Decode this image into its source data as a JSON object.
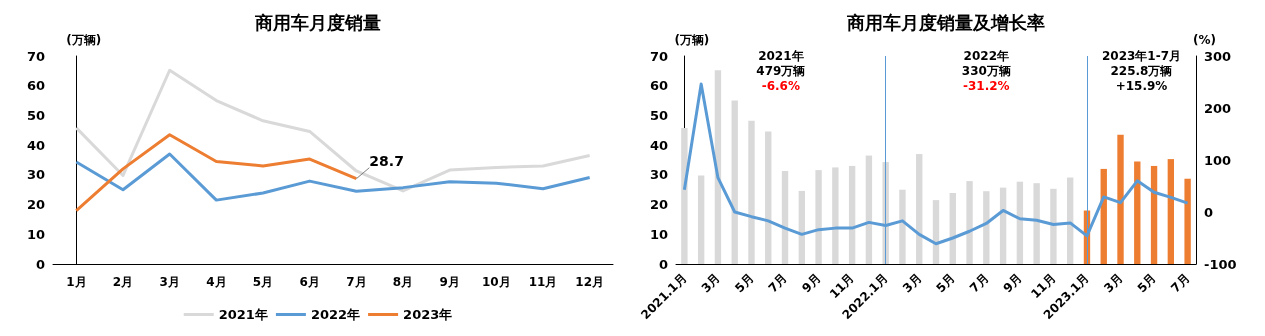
{
  "chart_data": [
    {
      "type": "line",
      "title": "商用车月度销量",
      "ylabel": "(万辆)",
      "categories": [
        "1月",
        "2月",
        "3月",
        "4月",
        "5月",
        "6月",
        "7月",
        "8月",
        "9月",
        "10月",
        "11月",
        "12月"
      ],
      "ylim": [
        0,
        70
      ],
      "yticks": [
        0,
        10,
        20,
        30,
        40,
        50,
        60,
        70
      ],
      "grid": false,
      "legend": "bottom",
      "marker": "none",
      "series": [
        {
          "name": "2021年",
          "color": "#d9d9d9",
          "values": [
            45.8,
            29.8,
            65.2,
            55,
            48.2,
            44.6,
            31.3,
            24.6,
            31.6,
            32.5,
            33,
            36.5
          ]
        },
        {
          "name": "2022年",
          "color": "#5b9bd5",
          "values": [
            34.3,
            25,
            37,
            21.5,
            23.9,
            27.9,
            24.5,
            25.7,
            27.7,
            27.2,
            25.3,
            29.1
          ]
        },
        {
          "name": "2023年",
          "color": "#ed7d31",
          "values": [
            18,
            32,
            43.5,
            34.5,
            33,
            35.3,
            28.7,
            null,
            null,
            null,
            null,
            null
          ],
          "value_labels": [
            null,
            null,
            null,
            null,
            null,
            null,
            "28.7",
            null,
            null,
            null,
            null,
            null
          ]
        }
      ]
    },
    {
      "type": "bar",
      "title": "商用车月度销量及增长率",
      "ylabel": "(万辆)",
      "y2label": "(%)",
      "categories": [
        "2021.1月",
        null,
        "3月",
        null,
        "5月",
        null,
        "7月",
        null,
        "9月",
        null,
        "11月",
        null,
        "2022.1月",
        null,
        "3月",
        null,
        "5月",
        null,
        "7月",
        null,
        "9月",
        null,
        "11月",
        null,
        "2023.1月",
        null,
        "3月",
        null,
        "5月",
        null,
        "7月"
      ],
      "ylim": [
        0,
        70
      ],
      "yticks": [
        0,
        10,
        20,
        30,
        40,
        50,
        60,
        70
      ],
      "y2lim": [
        -100,
        300
      ],
      "y2ticks": [
        -100,
        0,
        100,
        200,
        300
      ],
      "grid": false,
      "legend": false,
      "series": [
        {
          "type": "bar",
          "colors": [
            "#d9d9d9",
            "#d9d9d9",
            "#d9d9d9",
            "#d9d9d9",
            "#d9d9d9",
            "#d9d9d9",
            "#d9d9d9",
            "#d9d9d9",
            "#d9d9d9",
            "#d9d9d9",
            "#d9d9d9",
            "#d9d9d9",
            "#d9d9d9",
            "#d9d9d9",
            "#d9d9d9",
            "#d9d9d9",
            "#d9d9d9",
            "#d9d9d9",
            "#d9d9d9",
            "#d9d9d9",
            "#d9d9d9",
            "#d9d9d9",
            "#d9d9d9",
            "#d9d9d9",
            "#ed7d31",
            "#ed7d31",
            "#ed7d31",
            "#ed7d31",
            "#ed7d31",
            "#ed7d31",
            "#ed7d31"
          ],
          "values": [
            45.8,
            29.8,
            65.2,
            55,
            48.2,
            44.6,
            31.3,
            24.6,
            31.6,
            32.5,
            33,
            36.5,
            34.3,
            25,
            37,
            21.5,
            23.9,
            27.9,
            24.5,
            25.7,
            27.7,
            27.2,
            25.3,
            29.1,
            18,
            32,
            43.5,
            34.5,
            33,
            35.3,
            28.7
          ]
        },
        {
          "type": "line",
          "axis": "y2",
          "color": "#5b9bd5",
          "values": [
            43,
            246,
            66,
            0,
            -9,
            -17,
            -31,
            -43,
            -34,
            -31,
            -31,
            -20,
            -26,
            -17,
            -43,
            -61,
            -50,
            -37,
            -22,
            3,
            -13,
            -16,
            -24,
            -21,
            -46,
            29,
            18,
            60,
            38,
            28,
            17
          ]
        }
      ],
      "ref_lines": [
        {
          "axis": "x",
          "value": "2022.1月",
          "color": "#5b9bd5"
        },
        {
          "axis": "x",
          "value": "2023.1月",
          "color": "#5b9bd5"
        }
      ],
      "annotations": [
        "2021年\n479万辆\n-6.6%",
        "2022年\n330万辆\n-31.2%",
        "2023年1-7月\n225.8万辆\n+15.9%"
      ]
    }
  ]
}
